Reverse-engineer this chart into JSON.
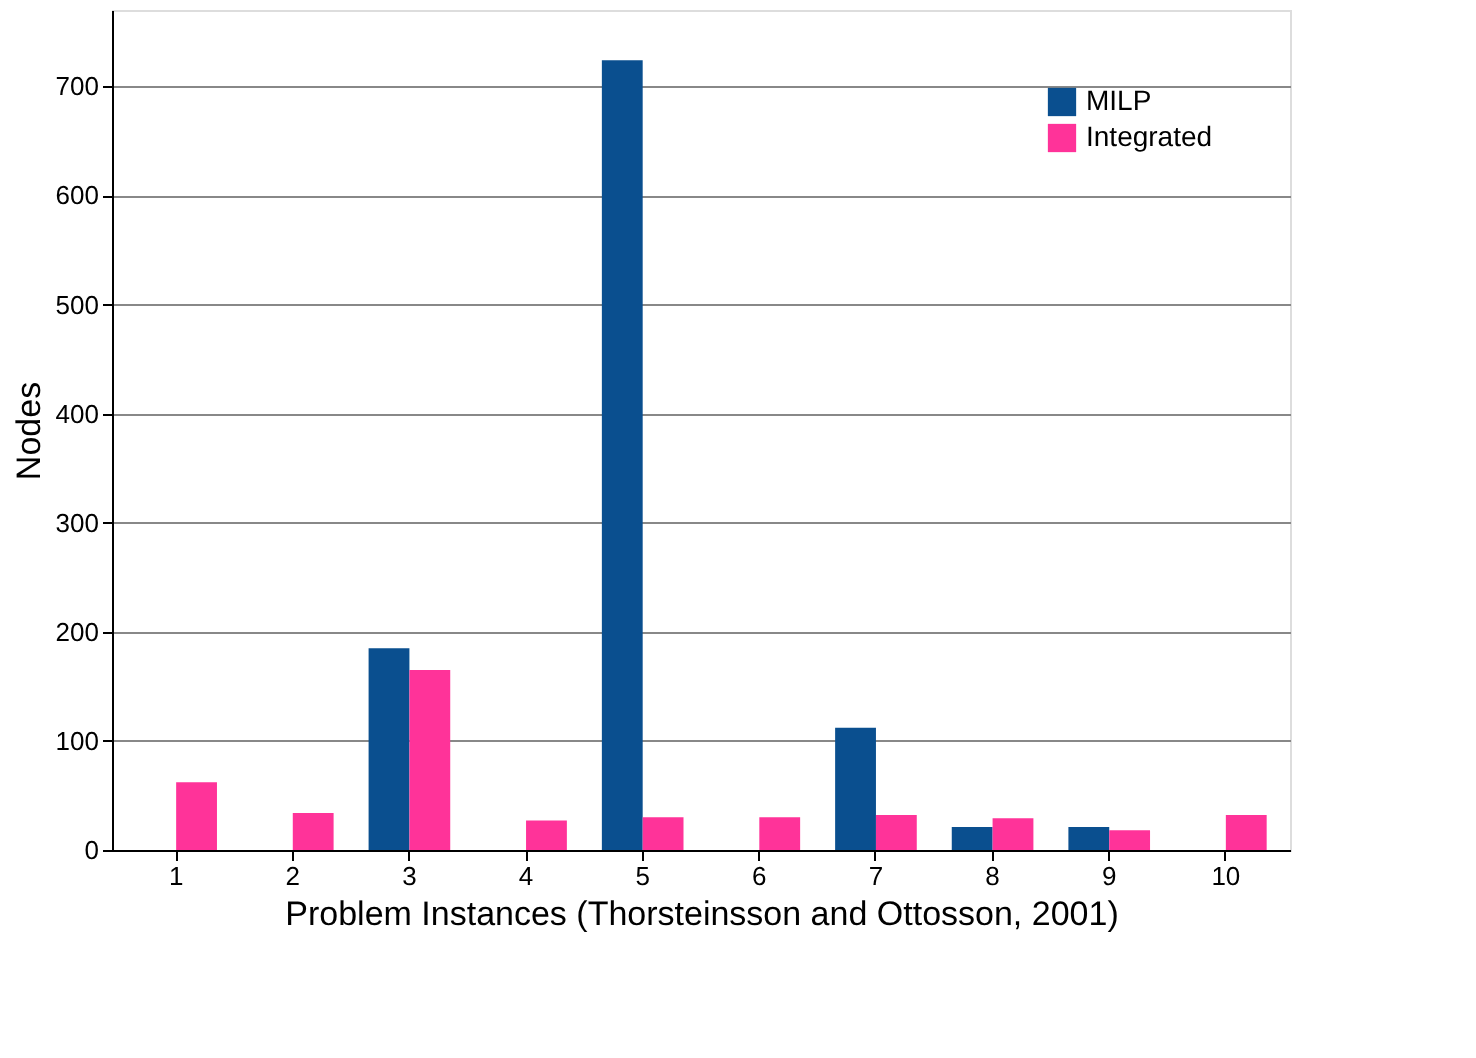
{
  "chart_data": {
    "type": "bar",
    "xlabel": "Problem Instances (Thorsteinsson and Ottosson, 2001)",
    "ylabel": "Nodes",
    "categories": [
      "1",
      "2",
      "3",
      "4",
      "5",
      "6",
      "7",
      "8",
      "9",
      "10"
    ],
    "series": [
      {
        "name": "MILP",
        "color": "#0a4f8f",
        "values": [
          null,
          null,
          185,
          null,
          724,
          null,
          112,
          21,
          21,
          null
        ]
      },
      {
        "name": "Integrated",
        "color": "#ff3399",
        "values": [
          62,
          34,
          165,
          27,
          30,
          30,
          32,
          29,
          18,
          32
        ]
      }
    ],
    "ylim": [
      0,
      770
    ],
    "yticks": [
      0,
      100,
      200,
      300,
      400,
      500,
      600,
      700
    ],
    "grid": "y",
    "legend": "top right"
  }
}
